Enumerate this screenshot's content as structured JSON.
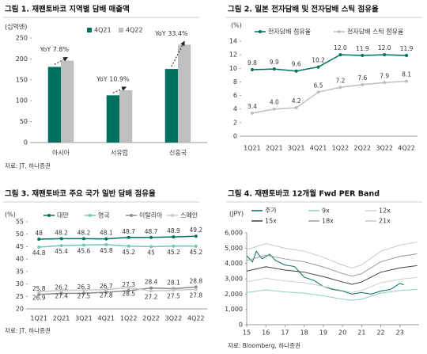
{
  "chart_data": [
    {
      "type": "bar",
      "title": "그림 1. 재팬토바코 지역별 담배 매출액",
      "y_unit": "(십억엔)",
      "categories": [
        "아시아",
        "서유럽",
        "신흥국"
      ],
      "series": [
        {
          "name": "4Q21",
          "color": "#00715e",
          "values": [
            181,
            113,
            176
          ]
        },
        {
          "name": "4Q22",
          "color": "#bfbfbf",
          "values": [
            196,
            125,
            234
          ]
        }
      ],
      "ylim": [
        0,
        250
      ],
      "yticks": [
        0,
        50,
        100,
        150,
        200,
        250
      ],
      "annotations": [
        "YoY 7.8%",
        "YoY 10.9%",
        "YoY 33.4%"
      ],
      "source": "자료: JT, 하나증권"
    },
    {
      "type": "line",
      "title": "그림 2. 일본 전자담배 및 전자담배 스틱 점유율",
      "y_unit": "(%)",
      "categories": [
        "1Q21",
        "2Q21",
        "3Q21",
        "4Q21",
        "1Q22",
        "2Q22",
        "3Q22",
        "4Q22"
      ],
      "series": [
        {
          "name": "전자담배 점유율",
          "color": "#00715e",
          "values": [
            9.8,
            9.9,
            9.6,
            10.2,
            12,
            11.9,
            12,
            11.9
          ],
          "value_labels": [
            "9.8",
            "9.9",
            "9.6",
            "10.2",
            "12.0",
            "11.9",
            "12.0",
            "11.9"
          ]
        },
        {
          "name": "전자담배 스틱 점유율",
          "color": "#bfbfbf",
          "values": [
            3.4,
            4,
            4.2,
            6.5,
            7.2,
            7.6,
            7.9,
            8.1
          ],
          "value_labels": [
            "3.4",
            "4.0",
            "4.2",
            "6.5",
            "7.2",
            "7.6",
            "7.9",
            "8.1"
          ]
        }
      ],
      "ylim": [
        0,
        14
      ],
      "yticks": [
        0,
        2,
        4,
        6,
        8,
        10,
        12,
        14
      ]
    },
    {
      "type": "line",
      "title": "그림 3. 재팬토바코 주요 국가 일반 담배 점유율",
      "y_unit": "(%)",
      "categories": [
        "1Q21",
        "2Q21",
        "3Q21",
        "4Q21",
        "1Q22",
        "2Q22",
        "3Q22",
        "4Q22"
      ],
      "series": [
        {
          "name": "대만",
          "color": "#00715e",
          "values": [
            48,
            48.2,
            48.2,
            48.1,
            48.7,
            48.7,
            48.9,
            49.2
          ]
        },
        {
          "name": "영국",
          "color": "#6fc9b8",
          "values": [
            44.8,
            45.4,
            45.6,
            45.8,
            45.2,
            45,
            45.2,
            45.2
          ]
        },
        {
          "name": "이탈리아",
          "color": "#8c8c8c",
          "values": [
            25.8,
            26.2,
            26.3,
            26.7,
            27.3,
            28.4,
            28.1,
            28.8
          ]
        },
        {
          "name": "스페인",
          "color": "#c8c8c8",
          "values": [
            26.9,
            27.4,
            27.5,
            27.8,
            28.5,
            27.2,
            27.5,
            27.8
          ]
        }
      ],
      "ylim": [
        20,
        55
      ],
      "yticks": [
        20,
        25,
        30,
        35,
        40,
        45,
        50,
        55
      ],
      "source": "자료: JT, 하나증권"
    },
    {
      "type": "line",
      "title": "그림 4. 재팬토바코 12개월 Fwd PER Band",
      "y_unit": "(JPY)",
      "series": [
        {
          "name": "주가",
          "color": "#00715e",
          "x": [
            15,
            15.3,
            15.5,
            15.8,
            16.2,
            16.5,
            17,
            17.5,
            18,
            18.5,
            19,
            19.5,
            20,
            20.5,
            21,
            21.5,
            22,
            22.5,
            23,
            23.2
          ],
          "values": [
            4500,
            4100,
            4800,
            4300,
            4600,
            4200,
            3900,
            3800,
            3100,
            2900,
            2500,
            2300,
            2200,
            2000,
            2100,
            2000,
            2200,
            2300,
            2700,
            2600
          ]
        },
        {
          "name": "9x",
          "color": "#8fd0c2",
          "x": [
            15,
            16,
            17,
            18,
            19,
            20,
            20.5,
            21,
            22,
            23,
            23.9
          ],
          "values": [
            2100,
            2270,
            2140,
            2060,
            1890,
            1670,
            1590,
            1670,
            2060,
            2230,
            2310
          ]
        },
        {
          "name": "12x",
          "color": "#cfcfcf",
          "x": [
            15,
            16,
            17,
            18,
            19,
            20,
            20.5,
            21,
            22,
            23,
            23.9
          ],
          "values": [
            2800,
            3030,
            2860,
            2740,
            2510,
            2230,
            2110,
            2230,
            2740,
            2970,
            3090
          ]
        },
        {
          "name": "15x",
          "color": "#404040",
          "x": [
            15,
            16,
            17,
            18,
            19,
            20,
            20.5,
            21,
            22,
            23,
            23.9
          ],
          "values": [
            3500,
            3790,
            3570,
            3430,
            3140,
            2790,
            2640,
            2790,
            3430,
            3710,
            3860
          ]
        },
        {
          "name": "18x",
          "color": "#9a9a9a",
          "x": [
            15,
            16,
            17,
            18,
            19,
            20,
            20.5,
            21,
            22,
            23,
            23.9
          ],
          "values": [
            4200,
            4540,
            4290,
            4110,
            3770,
            3340,
            3170,
            3340,
            4110,
            4460,
            4630
          ]
        },
        {
          "name": "21x",
          "color": "#c8c8c8",
          "x": [
            15,
            16,
            17,
            18,
            19,
            20,
            20.5,
            21,
            22,
            23,
            23.9
          ],
          "values": [
            4900,
            5300,
            5000,
            4800,
            4400,
            3900,
            3700,
            3900,
            4800,
            5200,
            5400
          ]
        }
      ],
      "xlim": [
        15,
        24
      ],
      "xticks": [
        15,
        16,
        17,
        18,
        19,
        20,
        21,
        22,
        23
      ],
      "ylim": [
        0,
        6000
      ],
      "yticks": [
        0,
        {
          "value": 1000,
          "label": "1,000"
        },
        {
          "value": 2000,
          "label": "2,000"
        },
        {
          "value": 3000,
          "label": "3,000"
        },
        {
          "value": 4000,
          "label": "4,000"
        },
        {
          "value": 5000,
          "label": "5,000"
        },
        {
          "value": 6000,
          "label": "6,000"
        }
      ],
      "source": "자료: Bloomberg, 하나증권"
    }
  ]
}
